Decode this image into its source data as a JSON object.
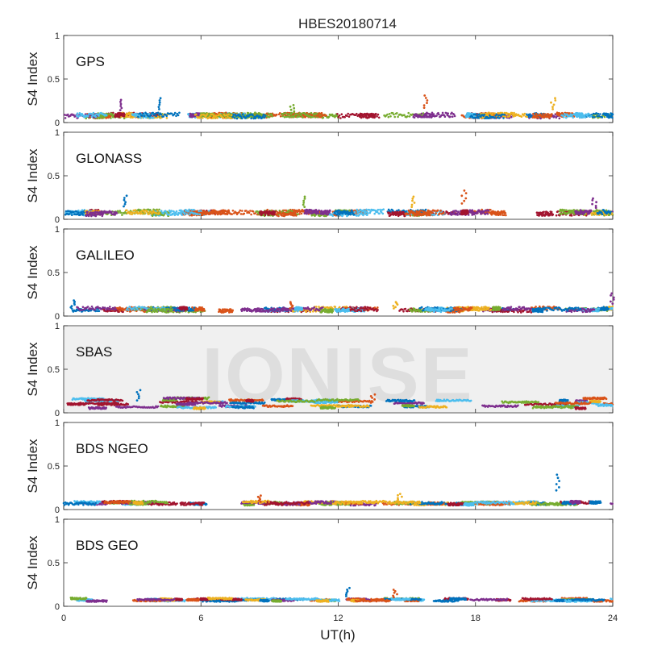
{
  "chart_data": {
    "type": "scatter",
    "title": "HBES20180714",
    "xlabel": "UT(h)",
    "ylabel": "S4 Index",
    "xlim": [
      0,
      24
    ],
    "ylim": [
      0,
      1
    ],
    "x_ticks": [
      "0",
      "6",
      "12",
      "18",
      "24"
    ],
    "y_ticks": [
      "0",
      "0.5",
      "1"
    ],
    "grid": false,
    "watermark": "IONISE",
    "panels": [
      {
        "label": "GPS",
        "baseline": [
          0.07,
          0.09
        ],
        "spread": 0.05,
        "spikes": [
          [
            4.2,
            0.28
          ],
          [
            15.8,
            0.31
          ],
          [
            21.4,
            0.28
          ],
          [
            2.5,
            0.26
          ],
          [
            10.0,
            0.2
          ]
        ]
      },
      {
        "label": "GLONASS",
        "baseline": [
          0.06,
          0.09
        ],
        "spread": 0.05,
        "spikes": [
          [
            2.7,
            0.27
          ],
          [
            17.5,
            0.33
          ],
          [
            15.3,
            0.26
          ],
          [
            23.2,
            0.24
          ],
          [
            10.5,
            0.26
          ]
        ]
      },
      {
        "label": "GALILEO",
        "baseline": [
          0.06,
          0.09
        ],
        "spread": 0.04,
        "spikes": [
          [
            0.4,
            0.18
          ],
          [
            10.0,
            0.16
          ],
          [
            14.5,
            0.16
          ],
          [
            24.0,
            0.26
          ]
        ]
      },
      {
        "label": "SBAS",
        "baseline": [
          0.05,
          0.17
        ],
        "spread": 0.02,
        "spikes": [
          [
            3.3,
            0.26
          ],
          [
            13.5,
            0.21
          ]
        ]
      },
      {
        "label": "BDS NGEO",
        "baseline": [
          0.06,
          0.09
        ],
        "spread": 0.03,
        "spikes": [
          [
            21.6,
            0.4
          ],
          [
            8.6,
            0.16
          ],
          [
            14.7,
            0.18
          ]
        ]
      },
      {
        "label": "BDS GEO",
        "baseline": [
          0.06,
          0.09
        ],
        "spread": 0.02,
        "spikes": [
          [
            12.4,
            0.21
          ],
          [
            14.5,
            0.19
          ]
        ]
      }
    ],
    "colors": [
      "#0072bd",
      "#d95319",
      "#edb120",
      "#7e2f8e",
      "#77ac30",
      "#4dbeee",
      "#a2142f"
    ]
  }
}
